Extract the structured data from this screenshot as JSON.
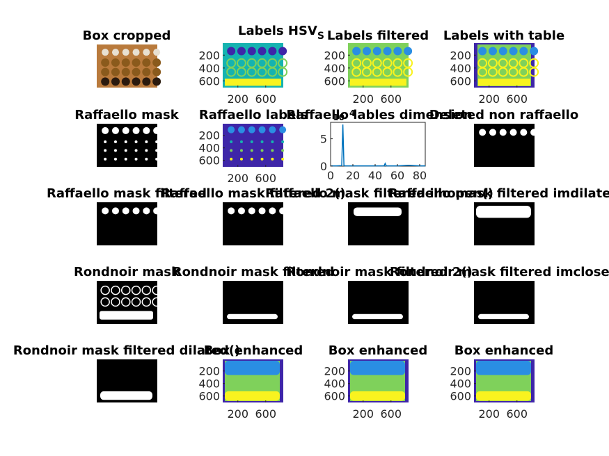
{
  "figure": {
    "background": "#ffffff",
    "palette": {
      "navy": "#3e26a8",
      "blue": "#2a8ee3",
      "teal": "#15b3b0",
      "green": "#7fd15b",
      "yellow": "#f9f31f",
      "white": "#ffffff",
      "black": "#000000",
      "brown": "#b97a3c"
    }
  },
  "chart_data": [
    {
      "id": "p1",
      "type": "image",
      "title": "Box cropped",
      "image": "photo-chocolate-box"
    },
    {
      "id": "p2",
      "type": "image",
      "title": "Labels HSV",
      "title_subscript": "S",
      "image": "hsv-labels",
      "yticks": [
        "200",
        "400",
        "600"
      ],
      "xticks": [
        "200",
        "600"
      ]
    },
    {
      "id": "p3",
      "type": "image",
      "title": "Labels filtered",
      "image": "labels-filtered",
      "yticks": [
        "200",
        "400",
        "600"
      ],
      "xticks": [
        "200",
        "600"
      ]
    },
    {
      "id": "p4",
      "type": "image",
      "title": "Labels with table",
      "image": "labels-with-table",
      "yticks": [
        "200",
        "400",
        "600"
      ],
      "xticks": [
        "200",
        "600"
      ]
    },
    {
      "id": "p5",
      "type": "image",
      "title": "Raffaello mask",
      "image": "mask-raffaello-dots"
    },
    {
      "id": "p6",
      "type": "image",
      "title": "Raffaello labels",
      "image": "raffaello-labels",
      "yticks": [
        "200",
        "400",
        "600"
      ],
      "xticks": [
        "200",
        "600"
      ]
    },
    {
      "id": "p7",
      "type": "line",
      "title": "Raffaello lables dimension",
      "xticks": [
        "0",
        "20",
        "40",
        "60",
        "80"
      ],
      "yticks": [
        "0",
        "5"
      ],
      "exponent_label": "10",
      "exponent_power": "4",
      "xlim": [
        0,
        85
      ],
      "ylim": [
        0,
        8
      ],
      "x": [
        0,
        5,
        10,
        11,
        12,
        13,
        20,
        30,
        40,
        48,
        49,
        50,
        51,
        60,
        70,
        80,
        85
      ],
      "values": [
        0.05,
        0.05,
        0.1,
        7.6,
        0.1,
        0.05,
        0.05,
        0.05,
        0.05,
        0.05,
        0.5,
        0.05,
        0.05,
        0.05,
        0.15,
        0.05,
        0.05
      ],
      "color": "#0072bd"
    },
    {
      "id": "p8",
      "type": "image",
      "title": "Deleted non raffaello",
      "image": "mask-top-row"
    },
    {
      "id": "p9",
      "type": "image",
      "title": "Raffaello mask filtered",
      "image": "mask-top-row"
    },
    {
      "id": "p10",
      "type": "image",
      "title": "Raffaello mask filtered 2()",
      "image": "mask-top-row"
    },
    {
      "id": "p11",
      "type": "image",
      "title": "Raffaello mask filtered imopen()",
      "image": "mask-top-bar"
    },
    {
      "id": "p12",
      "type": "image",
      "title": "Raffaello mask filtered imclose()",
      "image": "mask-top-bar-wide"
    },
    {
      "id": "p13",
      "type": "image",
      "title": "Rondnoir mask",
      "image": "mask-rondnoir-rings"
    },
    {
      "id": "p14",
      "type": "image",
      "title": "Rondnoir mask filtered",
      "image": "mask-bottom-bar"
    },
    {
      "id": "p15",
      "type": "image",
      "title": "Rondnoir mask filtered 2()",
      "image": "mask-bottom-bar"
    },
    {
      "id": "p16",
      "type": "image",
      "title": "Rondnoir mask filtered imopen()",
      "image": "mask-bottom-bar"
    },
    {
      "id": "p16b",
      "type": "image",
      "title": "Rondnoir mask filtered imclose()",
      "image": "mask-bottom-bar"
    },
    {
      "id": "p17",
      "type": "image",
      "title": "Rondnoir mask filtered dilated()",
      "image": "mask-bottom-bar-big"
    },
    {
      "id": "p18",
      "type": "image",
      "title": "Box enhanced",
      "image": "enhanced",
      "yticks": [
        "200",
        "400",
        "600"
      ],
      "xticks": [
        "200",
        "600"
      ]
    },
    {
      "id": "p19",
      "type": "image",
      "title": "Box enhanced",
      "image": "enhanced",
      "yticks": [
        "200",
        "400",
        "600"
      ],
      "xticks": [
        "200",
        "600"
      ]
    },
    {
      "id": "p20",
      "type": "image",
      "title": "Box enhanced",
      "image": "enhanced",
      "yticks": [
        "200",
        "400",
        "600"
      ],
      "xticks": [
        "200",
        "600"
      ]
    },
    {
      "id": "p9b",
      "type": "image",
      "title": "Raffaello mask filtered imdilate()",
      "image": "mask-top-bar-wide"
    }
  ]
}
